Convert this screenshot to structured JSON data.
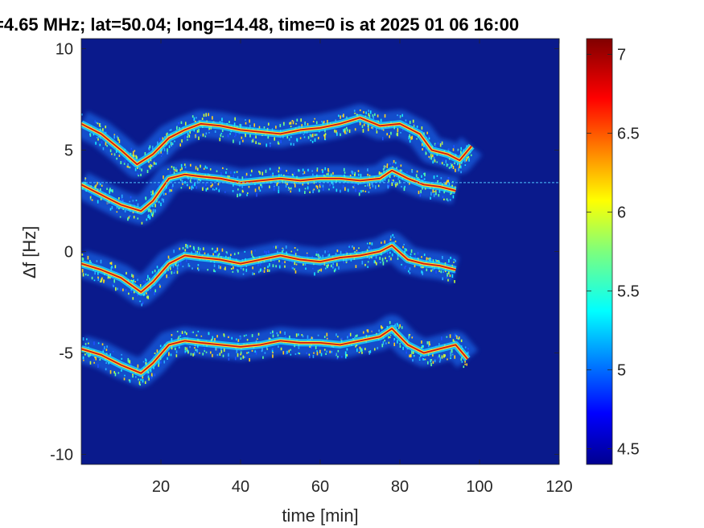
{
  "title": "=4.65 MHz;  lat=50.04; long=14.48, time=0 is at 2025 01 06 16:00",
  "chart_data": {
    "type": "heatmap",
    "title": "=4.65 MHz;  lat=50.04; long=14.48, time=0 is at 2025 01 06 16:00",
    "xlabel": "time [min]",
    "ylabel": "∆f [Hz]",
    "xlim": [
      0,
      120
    ],
    "ylim": [
      -10.5,
      10.5
    ],
    "xticks": [
      20,
      40,
      60,
      80,
      100,
      120
    ],
    "xtick_labels": [
      "20",
      "40",
      "60",
      "80",
      "100",
      "120"
    ],
    "yticks": [
      10,
      5,
      0,
      -5,
      -10
    ],
    "ytick_labels": [
      "10",
      "5",
      "0",
      "-5",
      "-10"
    ],
    "colorbar": {
      "colormap": "jet",
      "clim": [
        4.4,
        7.1
      ],
      "ticks": [
        7,
        6.5,
        6,
        5.5,
        5,
        4.5
      ],
      "tick_labels": [
        "7",
        "6.5",
        "6",
        "5.5",
        "5",
        "4.5"
      ]
    },
    "background_color": "#0a1a8c",
    "reference_line": {
      "y": 3.4,
      "color": "#4dc3ff",
      "style": "dashed"
    },
    "series": [
      {
        "x": [
          0,
          5,
          10,
          14,
          18,
          22,
          26,
          30,
          35,
          40,
          45,
          50,
          55,
          60,
          65,
          70,
          75,
          80,
          85,
          88,
          92,
          95,
          98
        ],
        "y": [
          6.3,
          5.8,
          5.0,
          4.3,
          4.8,
          5.6,
          6.0,
          6.3,
          6.2,
          6.0,
          5.9,
          5.8,
          6.0,
          6.1,
          6.3,
          6.6,
          6.2,
          6.3,
          5.8,
          5.0,
          4.8,
          4.5,
          5.2
        ]
      },
      {
        "x": [
          0,
          5,
          10,
          15,
          18,
          22,
          26,
          30,
          35,
          40,
          45,
          50,
          55,
          60,
          65,
          70,
          75,
          78,
          82,
          86,
          90,
          94
        ],
        "y": [
          3.3,
          2.8,
          2.3,
          2.0,
          2.5,
          3.6,
          3.8,
          3.7,
          3.6,
          3.4,
          3.5,
          3.6,
          3.5,
          3.6,
          3.6,
          3.5,
          3.6,
          4.0,
          3.6,
          3.3,
          3.2,
          3.0
        ]
      },
      {
        "x": [
          0,
          5,
          10,
          15,
          18,
          22,
          26,
          30,
          35,
          40,
          45,
          50,
          55,
          60,
          65,
          70,
          75,
          78,
          82,
          86,
          90,
          94
        ],
        "y": [
          -0.6,
          -0.9,
          -1.3,
          -2.0,
          -1.5,
          -0.6,
          -0.2,
          -0.3,
          -0.4,
          -0.6,
          -0.4,
          -0.2,
          -0.4,
          -0.5,
          -0.3,
          -0.2,
          0.0,
          0.3,
          -0.4,
          -0.6,
          -0.7,
          -0.9
        ]
      },
      {
        "x": [
          0,
          5,
          10,
          15,
          18,
          22,
          26,
          30,
          35,
          40,
          45,
          50,
          55,
          60,
          65,
          70,
          75,
          78,
          82,
          86,
          90,
          94,
          97
        ],
        "y": [
          -4.8,
          -5.1,
          -5.6,
          -6.0,
          -5.5,
          -4.6,
          -4.4,
          -4.5,
          -4.6,
          -4.7,
          -4.6,
          -4.4,
          -4.5,
          -4.5,
          -4.6,
          -4.4,
          -4.2,
          -3.8,
          -4.6,
          -5.0,
          -4.8,
          -4.6,
          -5.3
        ]
      }
    ]
  }
}
